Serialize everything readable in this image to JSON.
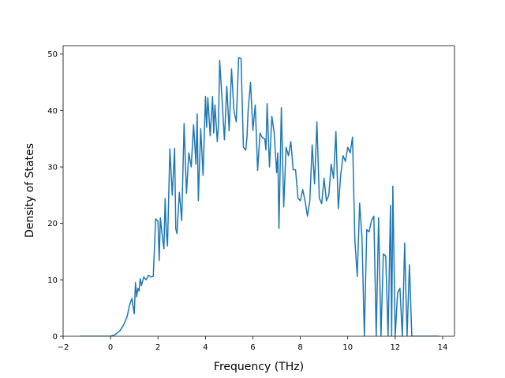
{
  "chart_data": {
    "type": "line",
    "title": "",
    "xlabel": "Frequency (THz)",
    "ylabel": "Density of States",
    "xlim": [
      -2,
      14.5
    ],
    "ylim": [
      0,
      51.5
    ],
    "xticks": [
      -2,
      0,
      2,
      4,
      6,
      8,
      10,
      12,
      14
    ],
    "yticks": [
      0,
      10,
      20,
      30,
      40,
      50
    ],
    "grid": false,
    "legend": "none",
    "series": [
      {
        "color": "#1f77b4",
        "x": [
          -1.3,
          0.0,
          0.2,
          0.4,
          0.55,
          0.7,
          0.8,
          0.9,
          0.95,
          1.0,
          1.05,
          1.1,
          1.15,
          1.2,
          1.25,
          1.3,
          1.4,
          1.5,
          1.6,
          1.7,
          1.8,
          1.9,
          2.0,
          2.05,
          2.1,
          2.2,
          2.25,
          2.3,
          2.35,
          2.4,
          2.5,
          2.6,
          2.7,
          2.75,
          2.8,
          2.9,
          3.0,
          3.1,
          3.2,
          3.3,
          3.4,
          3.5,
          3.6,
          3.65,
          3.7,
          3.8,
          3.9,
          4.0,
          4.05,
          4.1,
          4.2,
          4.3,
          4.35,
          4.4,
          4.5,
          4.55,
          4.6,
          4.7,
          4.8,
          4.9,
          5.0,
          5.1,
          5.2,
          5.3,
          5.4,
          5.5,
          5.6,
          5.7,
          5.75,
          5.8,
          5.9,
          6.0,
          6.1,
          6.2,
          6.3,
          6.4,
          6.5,
          6.55,
          6.6,
          6.7,
          6.8,
          6.9,
          7.0,
          7.05,
          7.1,
          7.2,
          7.3,
          7.4,
          7.5,
          7.6,
          7.7,
          7.8,
          7.9,
          8.0,
          8.1,
          8.2,
          8.3,
          8.4,
          8.5,
          8.6,
          8.7,
          8.8,
          8.9,
          9.0,
          9.1,
          9.2,
          9.3,
          9.4,
          9.5,
          9.6,
          9.7,
          9.8,
          9.9,
          10.0,
          10.1,
          10.2,
          10.3,
          10.4,
          10.5,
          10.6,
          10.7,
          10.8,
          10.9,
          11.0,
          11.1,
          11.2,
          11.3,
          11.4,
          11.5,
          11.6,
          11.7,
          11.8,
          11.85,
          11.9,
          12.0,
          12.1,
          12.2,
          12.3,
          12.4,
          12.5,
          12.6,
          12.7,
          13.85
        ],
        "y": [
          0,
          0,
          0.3,
          1.0,
          2.0,
          3.5,
          5.5,
          6.7,
          5.2,
          4.0,
          9.5,
          7.0,
          8.5,
          8.0,
          10.2,
          9.0,
          10.5,
          10.0,
          10.8,
          10.5,
          10.6,
          20.8,
          20.4,
          13.4,
          21.0,
          17.0,
          15.5,
          24.4,
          18.5,
          16.0,
          33.2,
          25.0,
          33.3,
          19.0,
          18.2,
          25.5,
          20.5,
          37.7,
          25.3,
          32.5,
          30.0,
          37.5,
          30.5,
          39.4,
          24.0,
          36.8,
          28.5,
          42.5,
          37.0,
          42.3,
          35.5,
          42.5,
          36.0,
          41.0,
          34.5,
          37.5,
          48.9,
          42.0,
          34.8,
          44.3,
          36.4,
          47.4,
          40.0,
          38.0,
          49.4,
          49.2,
          33.5,
          33.0,
          35.2,
          40.0,
          45.0,
          36.5,
          41.0,
          29.4,
          36.0,
          35.2,
          35.0,
          33.0,
          41.2,
          30.0,
          39.0,
          36.0,
          29.0,
          32.5,
          19.1,
          40.5,
          22.9,
          33.5,
          32.0,
          34.5,
          29.5,
          29.5,
          24.5,
          24.0,
          26.0,
          24.0,
          21.3,
          24.0,
          33.9,
          27.0,
          38.0,
          24.5,
          23.5,
          28.0,
          24.0,
          25.0,
          30.5,
          28.0,
          36.3,
          22.6,
          28.5,
          32.0,
          31.0,
          33.5,
          32.5,
          35.3,
          17.0,
          10.6,
          23.6,
          17.5,
          0,
          18.9,
          18.5,
          20.5,
          21.3,
          0,
          21.0,
          0,
          14.6,
          14.2,
          0,
          23.2,
          0,
          26.6,
          0,
          7.7,
          8.5,
          0,
          16.5,
          0,
          12.7,
          0,
          0
        ]
      }
    ]
  }
}
